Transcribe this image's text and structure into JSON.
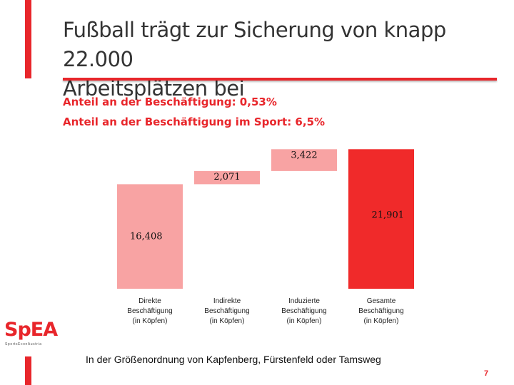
{
  "slide": {
    "title_line1": "Fußball trägt zur Sicherung von knapp 22.000",
    "title_line2": "Arbeitsplätzen bei",
    "subtitle_line1": "Anteil an der Beschäftigung: 0,53%",
    "subtitle_line2": "Anteil an der Beschäftigung im Sport: 6,5%",
    "footer": "In der Größenordnung von Kapfenberg, Fürstenfeld oder Tamsweg",
    "page_number": "7",
    "logo_text": "SpEA",
    "logo_subtext": "SportsEconAustria"
  },
  "colors": {
    "accent": "#e8262b",
    "light_bar": "#f8a3a3",
    "total_bar": "#f02a2a"
  },
  "chart_data": {
    "type": "bar",
    "subtype": "waterfall",
    "categories": [
      [
        "Direkte",
        "Beschäftigung",
        "(in Köpfen)"
      ],
      [
        "Indirekte",
        "Beschäftigung",
        "(in Köpfen)"
      ],
      [
        "Induzierte",
        "Beschäftigung",
        "(in Köpfen)"
      ],
      [
        "Gesamte",
        "Beschäftigung",
        "(in Köpfen)"
      ]
    ],
    "values": [
      16408,
      2071,
      3422,
      21901
    ],
    "data_labels": [
      "16,408",
      "2,071",
      "3,422",
      "21,901"
    ],
    "ylim": [
      0,
      23500
    ],
    "grid": false,
    "legend": "none"
  }
}
